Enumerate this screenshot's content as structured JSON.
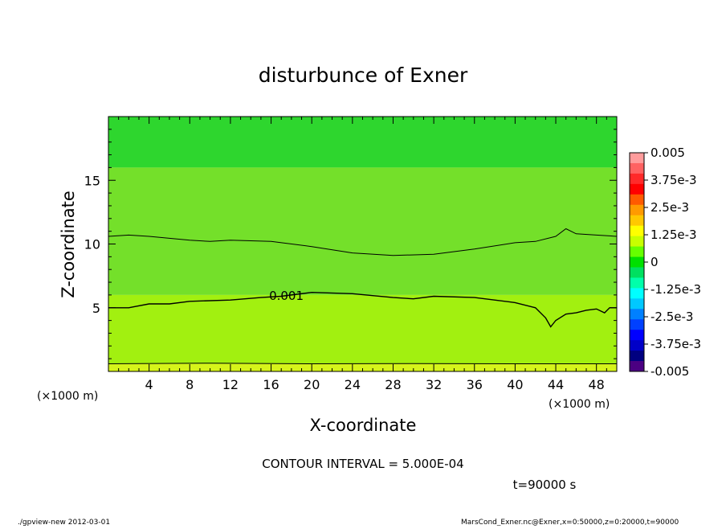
{
  "chart_data": {
    "type": "contour",
    "title": "disturbunce of Exner",
    "xlabel": "X-coordinate",
    "ylabel": "Z-coordinate",
    "x_unit_label": "(×1000 m)",
    "x_unit_label_right": "(×1000 m)",
    "xlim": [
      0,
      50
    ],
    "ylim": [
      0,
      20
    ],
    "xticks": [
      4,
      8,
      12,
      16,
      20,
      24,
      28,
      32,
      36,
      40,
      44,
      48
    ],
    "yticks": [
      5,
      10,
      15
    ],
    "contour_interval_text": "CONTOUR INTERVAL = 5.000E-04",
    "time_text": "t=90000 s",
    "contour_label": "0.001",
    "colorbar": {
      "ticks": [
        "0.005",
        "3.75e-3",
        "2.5e-3",
        "1.25e-3",
        "0",
        "-1.25e-3",
        "-2.5e-3",
        "-3.75e-3",
        "-0.005"
      ],
      "colors": [
        "#ff9c9c",
        "#ff6262",
        "#ff2a2a",
        "#ff0000",
        "#ff5a00",
        "#ff9a00",
        "#ffc800",
        "#ffff00",
        "#c8ff00",
        "#66ff00",
        "#00e000",
        "#00e060",
        "#00ffaa",
        "#00ffff",
        "#00c8ff",
        "#0080ff",
        "#0040ff",
        "#0000ff",
        "#0000c8",
        "#000080",
        "#4b0082"
      ]
    },
    "regions": [
      {
        "level": "0 to 5.0e-4",
        "z_range": [
          16,
          20
        ],
        "color": "#2ed62e"
      },
      {
        "level": "5.0e-4 to 1.0e-3",
        "z_range": [
          6,
          16
        ],
        "color": "#74e02a"
      },
      {
        "level": "1.0e-3 to 1.5e-3",
        "z_range": [
          0.6,
          6
        ],
        "color": "#a2f010"
      },
      {
        "level": "1.5e-3 to 2.0e-3",
        "z_range": [
          0,
          0.6
        ],
        "color": "#d6f41a"
      }
    ],
    "contour_upper": {
      "level": "5.0e-4",
      "points": [
        [
          0,
          10.6
        ],
        [
          2,
          10.7
        ],
        [
          4,
          10.6
        ],
        [
          8,
          10.3
        ],
        [
          10,
          10.2
        ],
        [
          12,
          10.3
        ],
        [
          16,
          10.2
        ],
        [
          20,
          9.8
        ],
        [
          24,
          9.3
        ],
        [
          28,
          9.1
        ],
        [
          32,
          9.2
        ],
        [
          36,
          9.6
        ],
        [
          40,
          10.1
        ],
        [
          42,
          10.2
        ],
        [
          44,
          10.6
        ],
        [
          45,
          11.2
        ],
        [
          46,
          10.8
        ],
        [
          48,
          10.7
        ],
        [
          50,
          10.6
        ]
      ]
    },
    "contour_lower": {
      "level": "1.0e-3",
      "points": [
        [
          0,
          5.0
        ],
        [
          2,
          5.0
        ],
        [
          4,
          5.3
        ],
        [
          6,
          5.3
        ],
        [
          8,
          5.5
        ],
        [
          12,
          5.6
        ],
        [
          15,
          5.8
        ],
        [
          17,
          5.9
        ],
        [
          20,
          6.2
        ],
        [
          24,
          6.1
        ],
        [
          28,
          5.8
        ],
        [
          30,
          5.7
        ],
        [
          32,
          5.9
        ],
        [
          36,
          5.8
        ],
        [
          40,
          5.4
        ],
        [
          42,
          5.0
        ],
        [
          43,
          4.2
        ],
        [
          43.5,
          3.5
        ],
        [
          44,
          4.0
        ],
        [
          45,
          4.5
        ],
        [
          46,
          4.6
        ],
        [
          47,
          4.8
        ],
        [
          48,
          4.9
        ],
        [
          48.8,
          4.6
        ],
        [
          49.3,
          5.0
        ],
        [
          50,
          5.0
        ]
      ]
    },
    "contour_bottom": {
      "level": "1.5e-3",
      "points": [
        [
          0,
          0.6
        ],
        [
          10,
          0.65
        ],
        [
          20,
          0.6
        ],
        [
          30,
          0.62
        ],
        [
          40,
          0.6
        ],
        [
          50,
          0.6
        ]
      ]
    }
  },
  "footer": {
    "left": "./gpview-new   2012-03-01",
    "right": "MarsCond_Exner.nc@Exner,x=0:50000,z=0:20000,t=90000"
  }
}
